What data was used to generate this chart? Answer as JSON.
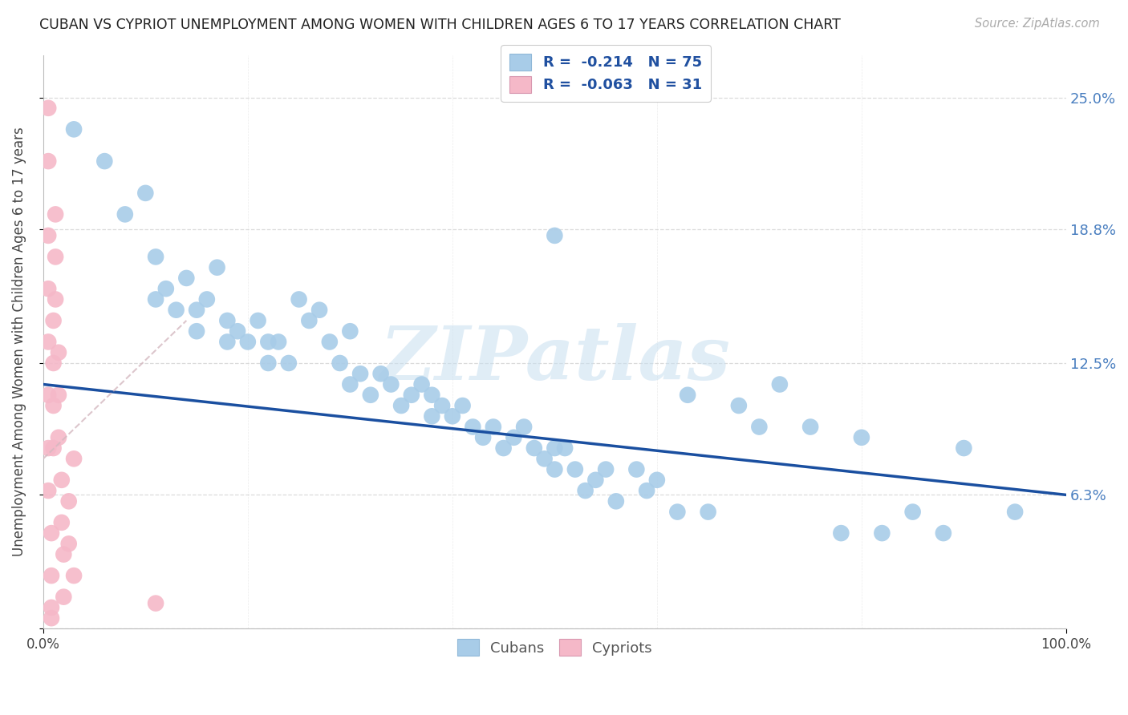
{
  "title": "CUBAN VS CYPRIOT UNEMPLOYMENT AMONG WOMEN WITH CHILDREN AGES 6 TO 17 YEARS CORRELATION CHART",
  "source": "Source: ZipAtlas.com",
  "ylabel": "Unemployment Among Women with Children Ages 6 to 17 years",
  "xlim": [
    0,
    100
  ],
  "ylim": [
    0,
    27
  ],
  "ytick_vals": [
    0,
    6.3,
    12.5,
    18.8,
    25.0
  ],
  "ytick_labels_right": [
    "0",
    "6.3%",
    "12.5%",
    "18.8%",
    "25.0%"
  ],
  "cuban_color": "#a8cce8",
  "cypriot_color": "#f5b8c8",
  "cuban_line_color": "#1a4fa0",
  "cypriot_line_color": "#d4b8c0",
  "background_color": "#ffffff",
  "grid_color": "#d8d8d8",
  "watermark_text": "ZIPatlas",
  "legend1_label": "R =  -0.214   N = 75",
  "legend2_label": "R =  -0.063   N = 31",
  "bottom_label1": "Cubans",
  "bottom_label2": "Cypriots",
  "cuban_line_x0": 0,
  "cuban_line_y0": 11.5,
  "cuban_line_x1": 100,
  "cuban_line_y1": 6.3,
  "cypriot_line_x0": 0,
  "cypriot_line_y0": 8.0,
  "cypriot_line_x1": 14,
  "cypriot_line_y1": 14.5,
  "cubans_x": [
    3,
    6,
    8,
    10,
    11,
    11,
    12,
    13,
    14,
    15,
    15,
    16,
    17,
    18,
    18,
    19,
    20,
    21,
    22,
    22,
    23,
    24,
    25,
    26,
    27,
    28,
    29,
    30,
    30,
    31,
    32,
    33,
    34,
    35,
    36,
    37,
    38,
    38,
    39,
    40,
    41,
    42,
    43,
    44,
    45,
    46,
    47,
    48,
    49,
    50,
    50,
    51,
    52,
    53,
    54,
    55,
    56,
    58,
    59,
    60,
    62,
    63,
    65,
    68,
    70,
    72,
    75,
    78,
    80,
    82,
    85,
    88,
    90,
    95,
    50
  ],
  "cubans_y": [
    23.5,
    22.0,
    19.5,
    20.5,
    17.5,
    15.5,
    16.0,
    15.0,
    16.5,
    15.0,
    14.0,
    15.5,
    17.0,
    13.5,
    14.5,
    14.0,
    13.5,
    14.5,
    13.5,
    12.5,
    13.5,
    12.5,
    15.5,
    14.5,
    15.0,
    13.5,
    12.5,
    14.0,
    11.5,
    12.0,
    11.0,
    12.0,
    11.5,
    10.5,
    11.0,
    11.5,
    11.0,
    10.0,
    10.5,
    10.0,
    10.5,
    9.5,
    9.0,
    9.5,
    8.5,
    9.0,
    9.5,
    8.5,
    8.0,
    8.5,
    7.5,
    8.5,
    7.5,
    6.5,
    7.0,
    7.5,
    6.0,
    7.5,
    6.5,
    7.0,
    5.5,
    11.0,
    5.5,
    10.5,
    9.5,
    11.5,
    9.5,
    4.5,
    9.0,
    4.5,
    5.5,
    4.5,
    8.5,
    5.5,
    18.5
  ],
  "cypriots_x": [
    0.5,
    0.5,
    0.5,
    0.5,
    0.5,
    0.5,
    0.5,
    0.5,
    0.8,
    0.8,
    0.8,
    0.8,
    1.0,
    1.0,
    1.0,
    1.0,
    1.2,
    1.2,
    1.2,
    1.5,
    1.5,
    1.5,
    1.8,
    1.8,
    2.0,
    2.0,
    2.5,
    2.5,
    3.0,
    3.0,
    11.0
  ],
  "cypriots_y": [
    24.5,
    22.0,
    18.5,
    16.0,
    13.5,
    11.0,
    8.5,
    6.5,
    4.5,
    2.5,
    1.0,
    0.5,
    14.5,
    12.5,
    10.5,
    8.5,
    19.5,
    17.5,
    15.5,
    13.0,
    11.0,
    9.0,
    7.0,
    5.0,
    3.5,
    1.5,
    6.0,
    4.0,
    8.0,
    2.5,
    1.2
  ]
}
